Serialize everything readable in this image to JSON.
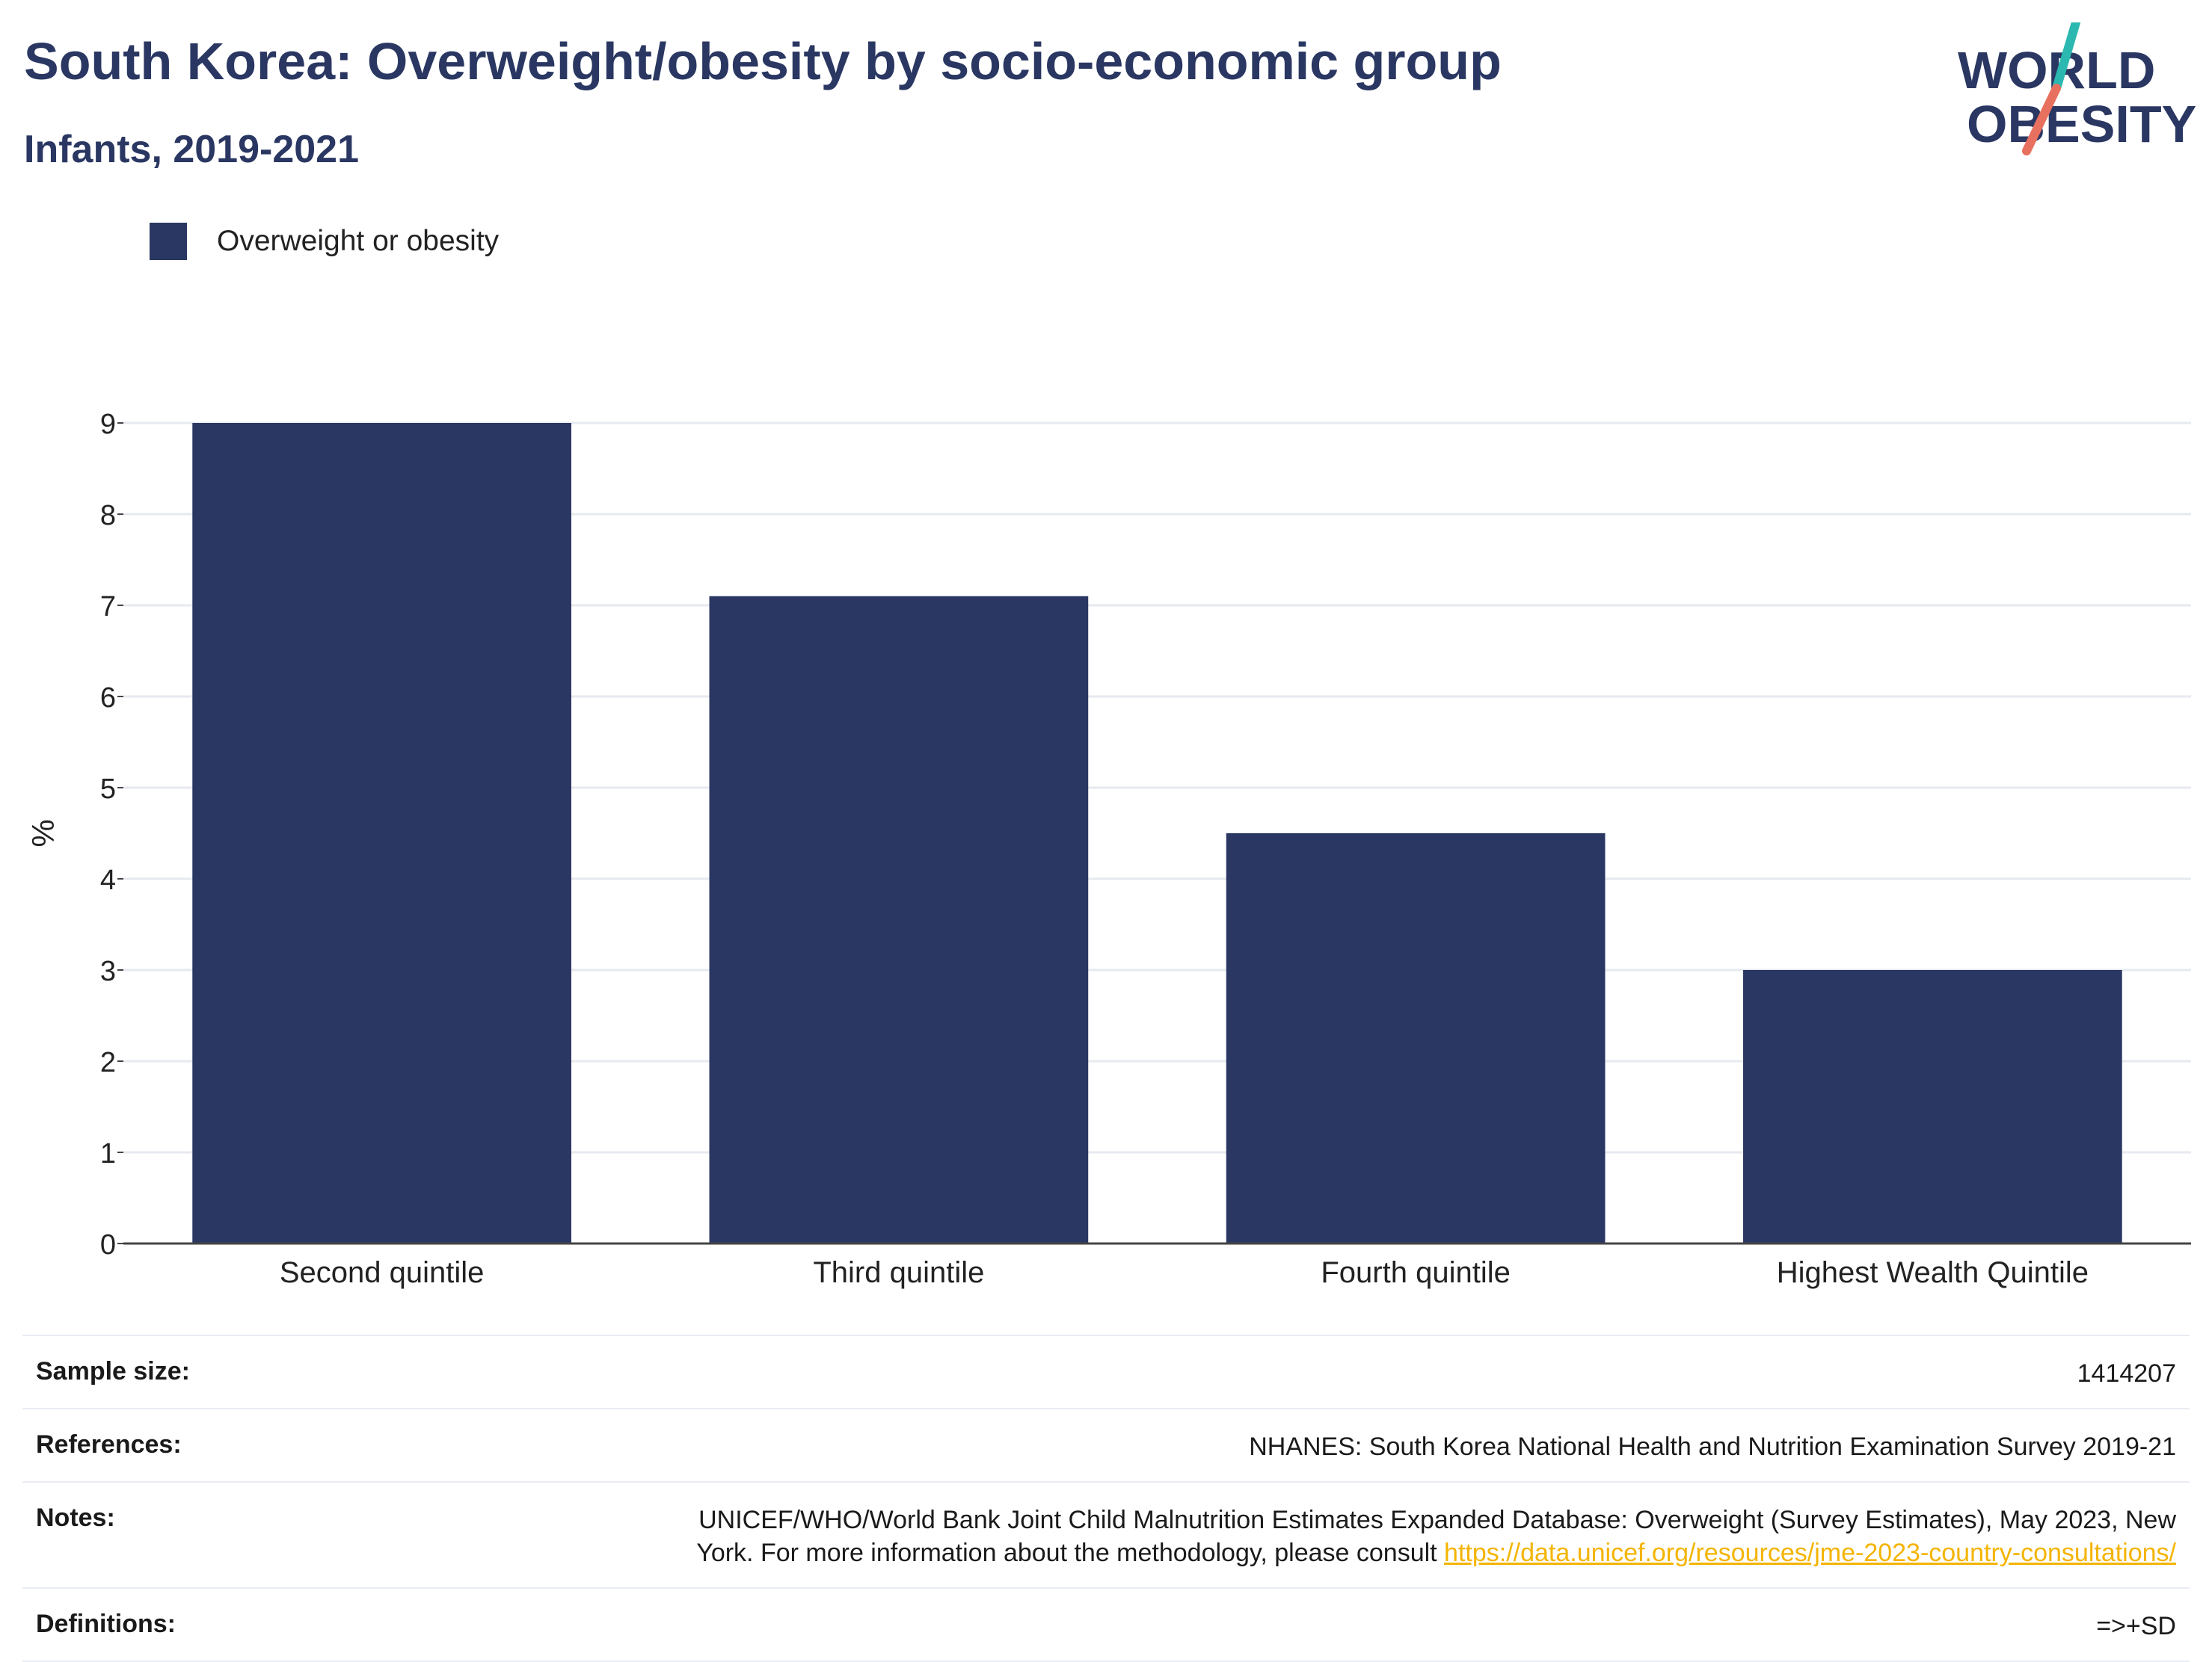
{
  "header": {
    "title": "South Korea: Overweight/obesity by socio-economic group",
    "subtitle": "Infants, 2019-2021"
  },
  "logo": {
    "line1": "WORLD",
    "line2": "OBESITY",
    "accent_teal": "#2bb8b0",
    "accent_red": "#e8705f",
    "text_color": "#2a3762"
  },
  "legend": {
    "label": "Overweight or obesity",
    "color": "#2a3762"
  },
  "chart_data": {
    "type": "bar",
    "categories": [
      "Second quintile",
      "Third quintile",
      "Fourth quintile",
      "Highest Wealth Quintile"
    ],
    "series": [
      {
        "name": "Overweight or obesity",
        "values": [
          9.0,
          7.1,
          4.5,
          3.0
        ],
        "color": "#2a3762"
      }
    ],
    "xlabel": "",
    "ylabel": "%",
    "ylim": [
      0,
      9
    ],
    "yticks": [
      0,
      1,
      2,
      3,
      4,
      5,
      6,
      7,
      8,
      9
    ],
    "grid": true,
    "legend_position": "top-left"
  },
  "info": {
    "sample_size_label": "Sample size:",
    "sample_size_value": "1414207",
    "references_label": "References:",
    "references_value": "NHANES: South Korea National Health and Nutrition Examination Survey 2019-21",
    "notes_label": "Notes:",
    "notes_value_line1": "UNICEF/WHO/World Bank Joint Child Malnutrition Estimates Expanded Database: Overweight (Survey Estimates), May 2023, New",
    "notes_value_line2": "York. For more information about the methodology, please consult ",
    "notes_link": "https://data.unicef.org/resources/jme-2023-country-consultations/",
    "definitions_label": "Definitions:",
    "definitions_value": "=>+SD"
  }
}
